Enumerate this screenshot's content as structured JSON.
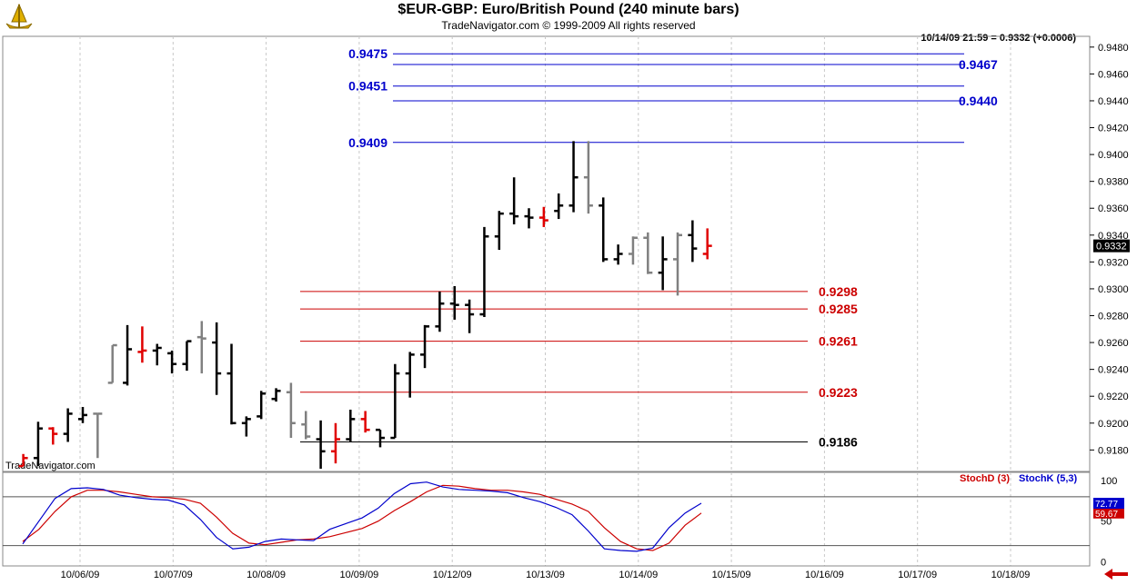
{
  "header": {
    "title": "$EUR-GBP:  Euro/British Pound  (240 minute bars)",
    "copyright": "TradeNavigator.com © 1999-2009 All rights reserved",
    "quote": "10/14/09 21:59 = 0.9332 (+0.0006)",
    "watermark": "TradeNavigator.com"
  },
  "chart_data": [
    {
      "type": "ohlc",
      "ylim": [
        0.9164,
        0.9488
      ],
      "y_ticks": [
        "0.9480",
        "0.9460",
        "0.9440",
        "0.9420",
        "0.9400",
        "0.9380",
        "0.9360",
        "0.9340",
        "0.9320",
        "0.9300",
        "0.9280",
        "0.9260",
        "0.9240",
        "0.9220",
        "0.9200",
        "0.9180"
      ],
      "last_price_label": "0.9332",
      "x_ticks": [
        "10/06/09",
        "10/07/09",
        "10/08/09",
        "10/09/09",
        "10/12/09",
        "10/13/09",
        "10/14/09",
        "10/15/09",
        "10/16/09",
        "10/17/09",
        "10/18/09"
      ],
      "bars": [
        {
          "o": 0.9168,
          "h": 0.9177,
          "l": 0.9168,
          "c": 0.9174,
          "color": "red"
        },
        {
          "o": 0.9174,
          "h": 0.9201,
          "l": 0.9168,
          "c": 0.9196,
          "color": "black"
        },
        {
          "o": 0.9196,
          "h": 0.9197,
          "l": 0.9184,
          "c": 0.9192,
          "color": "red"
        },
        {
          "o": 0.9192,
          "h": 0.9211,
          "l": 0.9186,
          "c": 0.9207,
          "color": "black"
        },
        {
          "o": 0.9203,
          "h": 0.9212,
          "l": 0.92,
          "c": 0.9206,
          "color": "black"
        },
        {
          "o": 0.9207,
          "h": 0.9207,
          "l": 0.9174,
          "c": 0.9207,
          "color": "gray"
        },
        {
          "o": 0.923,
          "h": 0.9258,
          "l": 0.923,
          "c": 0.9258,
          "color": "gray"
        },
        {
          "o": 0.923,
          "h": 0.9273,
          "l": 0.9228,
          "c": 0.9255,
          "color": "black"
        },
        {
          "o": 0.9253,
          "h": 0.9272,
          "l": 0.9245,
          "c": 0.9254,
          "color": "red"
        },
        {
          "o": 0.9254,
          "h": 0.9259,
          "l": 0.9243,
          "c": 0.9256,
          "color": "black"
        },
        {
          "o": 0.9252,
          "h": 0.9254,
          "l": 0.9237,
          "c": 0.9244,
          "color": "black"
        },
        {
          "o": 0.9244,
          "h": 0.9261,
          "l": 0.9239,
          "c": 0.9261,
          "color": "black"
        },
        {
          "o": 0.9264,
          "h": 0.9276,
          "l": 0.9237,
          "c": 0.9263,
          "color": "gray"
        },
        {
          "o": 0.926,
          "h": 0.9275,
          "l": 0.9221,
          "c": 0.9237,
          "color": "black"
        },
        {
          "o": 0.9237,
          "h": 0.9259,
          "l": 0.9199,
          "c": 0.92,
          "color": "black"
        },
        {
          "o": 0.92,
          "h": 0.9205,
          "l": 0.919,
          "c": 0.9203,
          "color": "black"
        },
        {
          "o": 0.9205,
          "h": 0.9224,
          "l": 0.9203,
          "c": 0.9222,
          "color": "black"
        },
        {
          "o": 0.9218,
          "h": 0.9226,
          "l": 0.9216,
          "c": 0.9224,
          "color": "black"
        },
        {
          "o": 0.9223,
          "h": 0.923,
          "l": 0.9189,
          "c": 0.92,
          "color": "gray"
        },
        {
          "o": 0.9199,
          "h": 0.9209,
          "l": 0.9188,
          "c": 0.919,
          "color": "gray"
        },
        {
          "o": 0.9188,
          "h": 0.9202,
          "l": 0.9166,
          "c": 0.9179,
          "color": "black"
        },
        {
          "o": 0.9179,
          "h": 0.92,
          "l": 0.917,
          "c": 0.9188,
          "color": "red"
        },
        {
          "o": 0.9188,
          "h": 0.921,
          "l": 0.9186,
          "c": 0.9203,
          "color": "black"
        },
        {
          "o": 0.9203,
          "h": 0.9209,
          "l": 0.9193,
          "c": 0.9195,
          "color": "red"
        },
        {
          "o": 0.9195,
          "h": 0.9195,
          "l": 0.9182,
          "c": 0.9189,
          "color": "black"
        },
        {
          "o": 0.9189,
          "h": 0.9244,
          "l": 0.9189,
          "c": 0.9237,
          "color": "black"
        },
        {
          "o": 0.9237,
          "h": 0.9253,
          "l": 0.9219,
          "c": 0.9251,
          "color": "black"
        },
        {
          "o": 0.9251,
          "h": 0.9273,
          "l": 0.9241,
          "c": 0.9272,
          "color": "black"
        },
        {
          "o": 0.9272,
          "h": 0.9298,
          "l": 0.9268,
          "c": 0.9289,
          "color": "black"
        },
        {
          "o": 0.9289,
          "h": 0.9302,
          "l": 0.9277,
          "c": 0.9288,
          "color": "black"
        },
        {
          "o": 0.9288,
          "h": 0.9292,
          "l": 0.9267,
          "c": 0.9281,
          "color": "black"
        },
        {
          "o": 0.9281,
          "h": 0.9346,
          "l": 0.9279,
          "c": 0.9339,
          "color": "black"
        },
        {
          "o": 0.9339,
          "h": 0.9358,
          "l": 0.9329,
          "c": 0.9356,
          "color": "black"
        },
        {
          "o": 0.9356,
          "h": 0.9383,
          "l": 0.9348,
          "c": 0.9354,
          "color": "black"
        },
        {
          "o": 0.9354,
          "h": 0.936,
          "l": 0.9345,
          "c": 0.9353,
          "color": "black"
        },
        {
          "o": 0.9353,
          "h": 0.9361,
          "l": 0.9346,
          "c": 0.9351,
          "color": "red"
        },
        {
          "o": 0.9358,
          "h": 0.9371,
          "l": 0.9352,
          "c": 0.9362,
          "color": "black"
        },
        {
          "o": 0.9362,
          "h": 0.941,
          "l": 0.9357,
          "c": 0.9383,
          "color": "black"
        },
        {
          "o": 0.9383,
          "h": 0.941,
          "l": 0.9356,
          "c": 0.9362,
          "color": "gray"
        },
        {
          "o": 0.9362,
          "h": 0.9368,
          "l": 0.932,
          "c": 0.9322,
          "color": "black"
        },
        {
          "o": 0.9322,
          "h": 0.9333,
          "l": 0.9318,
          "c": 0.9326,
          "color": "black"
        },
        {
          "o": 0.9326,
          "h": 0.9339,
          "l": 0.9318,
          "c": 0.9338,
          "color": "gray"
        },
        {
          "o": 0.9338,
          "h": 0.9342,
          "l": 0.9311,
          "c": 0.9312,
          "color": "gray"
        },
        {
          "o": 0.9312,
          "h": 0.9339,
          "l": 0.9299,
          "c": 0.9322,
          "color": "black"
        },
        {
          "o": 0.9322,
          "h": 0.9342,
          "l": 0.9295,
          "c": 0.934,
          "color": "gray"
        },
        {
          "o": 0.934,
          "h": 0.9351,
          "l": 0.932,
          "c": 0.933,
          "color": "black"
        },
        {
          "o": 0.9326,
          "h": 0.9345,
          "l": 0.9322,
          "c": 0.9332,
          "color": "red"
        }
      ],
      "levels": [
        {
          "label": "0.9475",
          "value": 0.9475,
          "color": "#0000cc",
          "side": "left"
        },
        {
          "label": "0.9467",
          "value": 0.9467,
          "color": "#0000cc",
          "side": "right"
        },
        {
          "label": "0.9451",
          "value": 0.9451,
          "color": "#0000cc",
          "side": "left"
        },
        {
          "label": "0.9440",
          "value": 0.944,
          "color": "#0000cc",
          "side": "right"
        },
        {
          "label": "0.9409",
          "value": 0.9409,
          "color": "#0000cc",
          "side": "left"
        },
        {
          "label": "0.9298",
          "value": 0.9298,
          "color": "#cc0000",
          "side": "right"
        },
        {
          "label": "0.9285",
          "value": 0.9285,
          "color": "#cc0000",
          "side": "right"
        },
        {
          "label": "0.9261",
          "value": 0.9261,
          "color": "#cc0000",
          "side": "right"
        },
        {
          "label": "0.9223",
          "value": 0.9223,
          "color": "#cc0000",
          "side": "right"
        },
        {
          "label": "0.9186",
          "value": 0.9186,
          "color": "#000000",
          "side": "right"
        }
      ]
    },
    {
      "type": "line",
      "ylim": [
        -5,
        110
      ],
      "y_ticks": [
        "100",
        "50",
        "0"
      ],
      "reference_lines": [
        80,
        20
      ],
      "series": [
        {
          "name": "StochD (3)",
          "color": "#cc0000",
          "last_label": "59.67",
          "values": [
            25,
            40,
            62,
            80,
            88,
            88,
            86,
            83,
            80,
            79,
            77,
            72,
            55,
            35,
            23,
            21,
            24,
            27,
            28,
            31,
            36,
            41,
            50,
            63,
            74,
            86,
            94,
            93,
            90,
            88,
            88,
            86,
            83,
            77,
            71,
            62,
            42,
            25,
            16,
            14,
            23,
            45,
            60
          ]
        },
        {
          "name": "StochK (5,3)",
          "color": "#0000cc",
          "last_label": "72.77",
          "values": [
            22,
            50,
            78,
            90,
            91,
            89,
            82,
            79,
            77,
            76,
            70,
            52,
            30,
            16,
            18,
            25,
            28,
            27,
            26,
            40,
            47,
            54,
            66,
            84,
            96,
            98,
            92,
            89,
            88,
            87,
            85,
            79,
            74,
            67,
            58,
            38,
            16,
            14,
            13,
            17,
            42,
            60,
            72
          ]
        }
      ]
    }
  ]
}
